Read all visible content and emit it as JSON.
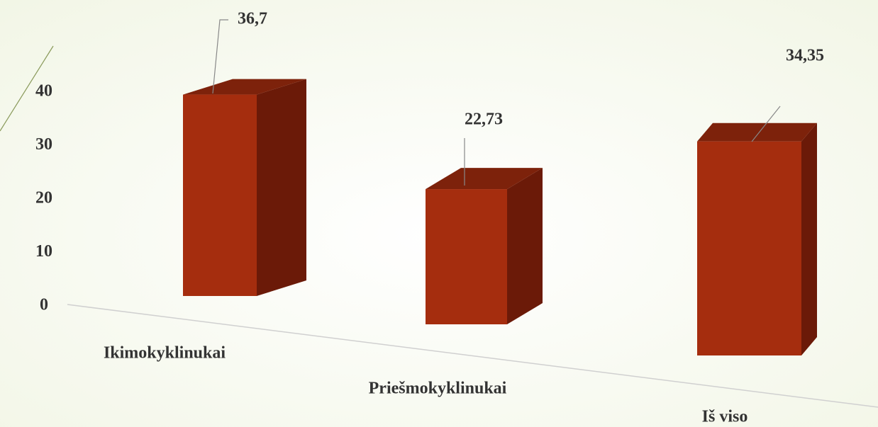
{
  "chart_data": {
    "type": "bar3d",
    "categories": [
      "Ikimokyklinukai",
      "Priešmokyklinukai",
      "Iš viso"
    ],
    "values": [
      36.7,
      22.73,
      34.35
    ],
    "value_labels": [
      "36,7",
      "22,73",
      "34,35"
    ],
    "color": "#a52d0e",
    "ylim": [
      0,
      40
    ],
    "yticks": [
      0,
      10,
      20,
      30,
      40
    ]
  }
}
